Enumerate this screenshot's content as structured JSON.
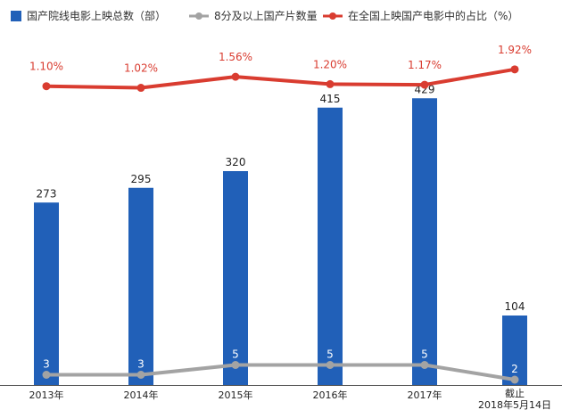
{
  "chart_data": {
    "type": "bar",
    "categories": [
      "2013年",
      "2014年",
      "2015年",
      "2016年",
      "2017年",
      [
        "截止",
        "2018年5月14日"
      ]
    ],
    "series": [
      {
        "name": "国产院线电影上映总数（部）",
        "kind": "bar",
        "color": "#2160b8",
        "values": [
          273,
          295,
          320,
          415,
          429,
          104
        ],
        "labels": [
          "273",
          "295",
          "320",
          "415",
          "429",
          "104"
        ]
      },
      {
        "name": "8分及以上国产片数量",
        "kind": "line",
        "color": "#a3a3a3",
        "values": [
          3,
          3,
          5,
          5,
          5,
          2
        ],
        "labels": [
          "3",
          "3",
          "5",
          "5",
          "5",
          "2"
        ]
      },
      {
        "name": "在全国上映国产电影中的占比（%）",
        "kind": "line",
        "color": "#d93c30",
        "values": [
          1.1,
          1.02,
          1.56,
          1.2,
          1.17,
          1.92
        ],
        "labels": [
          "1.10%",
          "1.02%",
          "1.56%",
          "1.20%",
          "1.17%",
          "1.92%"
        ]
      }
    ],
    "legend_position": "top",
    "grid": false
  }
}
